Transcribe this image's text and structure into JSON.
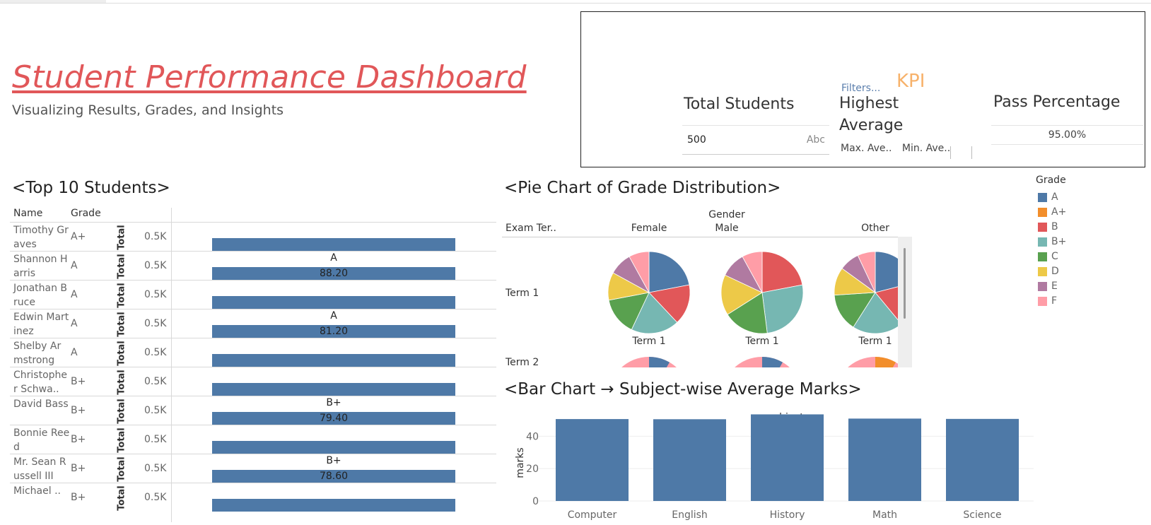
{
  "header": {
    "title": "Student Performance Dashboard",
    "subtitle": "Visualizing Results, Grades, and Insights"
  },
  "kpi": {
    "tag": "KPI",
    "filters_label": "Filters...",
    "total_students_label": "Total Students",
    "total_students_value": "500",
    "total_students_type": "Abc",
    "highest_average_label_line1": "Highest",
    "highest_average_label_line2": "Average",
    "max_average_label": "Max. Ave..",
    "min_average_label": "Min. Ave..",
    "pass_percentage_label": "Pass Percentage",
    "pass_percentage_value": "95.00%"
  },
  "top10": {
    "title": "<Top 10 Students>",
    "col_name": "Name",
    "col_grade": "Grade",
    "measure_label": "Total",
    "axis_tick": "0.5K",
    "rows": [
      {
        "name": "Timothy Graves",
        "grade": "A+",
        "bar_fraction": 1.0,
        "bar_grade": "",
        "bar_value": ""
      },
      {
        "name": "Shannon Harris",
        "grade": "A",
        "bar_fraction": 1.0,
        "bar_grade": "A",
        "bar_value": "88.20"
      },
      {
        "name": "Jonathan Bruce",
        "grade": "A",
        "bar_fraction": 1.0,
        "bar_grade": "",
        "bar_value": ""
      },
      {
        "name": "Edwin Martinez",
        "grade": "A",
        "bar_fraction": 1.0,
        "bar_grade": "A",
        "bar_value": "81.20"
      },
      {
        "name": "Shelby Armstrong",
        "grade": "A",
        "bar_fraction": 1.0,
        "bar_grade": "",
        "bar_value": ""
      },
      {
        "name": "Christopher Schwa..",
        "grade": "B+",
        "bar_fraction": 1.0,
        "bar_grade": "",
        "bar_value": ""
      },
      {
        "name": "David Bass",
        "grade": "B+",
        "bar_fraction": 1.0,
        "bar_grade": "B+",
        "bar_value": "79.40"
      },
      {
        "name": "Bonnie Reed",
        "grade": "B+",
        "bar_fraction": 1.0,
        "bar_grade": "",
        "bar_value": ""
      },
      {
        "name": "Mr. Sean Russell III",
        "grade": "B+",
        "bar_fraction": 1.0,
        "bar_grade": "B+",
        "bar_value": "78.60"
      },
      {
        "name": "Michael ..",
        "grade": "B+",
        "bar_fraction": 1.0,
        "bar_grade": "",
        "bar_value": ""
      }
    ]
  },
  "pie_section": {
    "title": "<Pie Chart of Grade Distribution>",
    "gender_header_line1": "Gender",
    "gender_header_line2": "Male",
    "exam_term_header": "Exam Ter..",
    "column_female": "Female",
    "column_other": "Other",
    "term1_label": "Term 1",
    "term2_label": "Term 2",
    "pie_caption": "Term 1"
  },
  "legend": {
    "title": "Grade",
    "items": [
      {
        "label": "A",
        "color": "#4e79a7"
      },
      {
        "label": "A+",
        "color": "#f28e2b"
      },
      {
        "label": "B",
        "color": "#e15759"
      },
      {
        "label": "B+",
        "color": "#76b7b2"
      },
      {
        "label": "C",
        "color": "#59a14f"
      },
      {
        "label": "D",
        "color": "#edc948"
      },
      {
        "label": "E",
        "color": "#b07aa1"
      },
      {
        "label": "F",
        "color": "#ff9da7"
      }
    ]
  },
  "subject_section": {
    "title": "<Bar Chart → Subject-wise Average Marks>"
  },
  "chart_data": [
    {
      "type": "pie",
      "title": "",
      "panels": [
        {
          "gender": "Female",
          "term": "Term 1",
          "slices": [
            {
              "grade": "A",
              "value": 22
            },
            {
              "grade": "B",
              "value": 16
            },
            {
              "grade": "B+",
              "value": 19
            },
            {
              "grade": "C",
              "value": 15
            },
            {
              "grade": "D",
              "value": 11
            },
            {
              "grade": "E",
              "value": 9
            },
            {
              "grade": "F",
              "value": 8
            }
          ]
        },
        {
          "gender": "Male",
          "term": "Term 1",
          "slices": [
            {
              "grade": "B",
              "value": 22
            },
            {
              "grade": "B+",
              "value": 26
            },
            {
              "grade": "C",
              "value": 18
            },
            {
              "grade": "D",
              "value": 16
            },
            {
              "grade": "E",
              "value": 10
            },
            {
              "grade": "F",
              "value": 8
            }
          ]
        },
        {
          "gender": "Other",
          "term": "Term 1",
          "slices": [
            {
              "grade": "A",
              "value": 21
            },
            {
              "grade": "B",
              "value": 18
            },
            {
              "grade": "B+",
              "value": 20
            },
            {
              "grade": "C",
              "value": 15
            },
            {
              "grade": "D",
              "value": 11
            },
            {
              "grade": "E",
              "value": 8
            },
            {
              "grade": "F",
              "value": 7
            }
          ]
        }
      ]
    },
    {
      "type": "bar",
      "title": "subjects",
      "xlabel": "",
      "ylabel": "marks",
      "categories": [
        "Computer",
        "English",
        "History",
        "Math",
        "Science"
      ],
      "values": [
        50.6,
        50.5,
        53.5,
        50.9,
        50.7
      ],
      "yticks": [
        0,
        20,
        40
      ],
      "ylim": [
        0,
        55
      ],
      "color": "#4e79a7"
    }
  ]
}
